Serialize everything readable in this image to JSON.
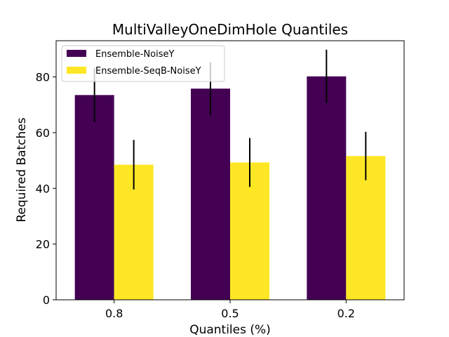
{
  "chart_data": {
    "type": "bar",
    "title": "MultiValleyOneDimHole Quantiles",
    "xlabel": "Quantiles (%)",
    "ylabel": "Required Batches",
    "categories": [
      "0.8",
      "0.5",
      "0.2"
    ],
    "ylim": [
      0,
      93
    ],
    "yticks": [
      0,
      20,
      40,
      60,
      80
    ],
    "grid": false,
    "legend_position": "top-left",
    "series": [
      {
        "name": "Ensemble-NoiseY",
        "color": "#440154",
        "values": [
          73.5,
          75.8,
          80.2
        ],
        "errors": [
          9.7,
          9.5,
          9.6
        ]
      },
      {
        "name": "Ensemble-SeqB-NoiseY",
        "color": "#fde725",
        "values": [
          48.5,
          49.3,
          51.6
        ],
        "errors": [
          8.9,
          8.8,
          8.7
        ]
      }
    ]
  }
}
